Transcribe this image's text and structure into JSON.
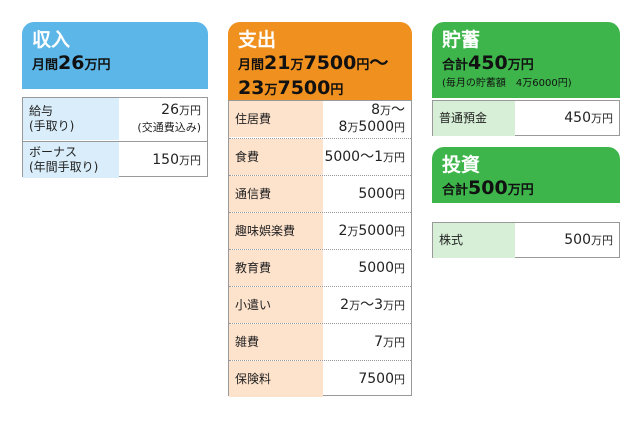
{
  "income": {
    "title": "収入",
    "summary": [
      "月間26万円"
    ],
    "rows": [
      {
        "label": [
          "給与",
          "(手取り)"
        ],
        "value": [
          "26万円",
          "(交通費込み)"
        ]
      },
      {
        "label": [
          "ボーナス",
          "(年間手取り)"
        ],
        "value": [
          "150万円"
        ]
      }
    ]
  },
  "expenses": {
    "title": "支出",
    "summary": [
      "月間21万7500円～",
      "23万7500円"
    ],
    "rows": [
      {
        "label": [
          "住居費"
        ],
        "value": [
          "8万～",
          "8万5000円"
        ]
      },
      {
        "label": [
          "食費"
        ],
        "value": [
          "5000～1万円"
        ]
      },
      {
        "label": [
          "通信費"
        ],
        "value": [
          "5000円"
        ]
      },
      {
        "label": [
          "趣味娯楽費"
        ],
        "value": [
          "2万5000円"
        ]
      },
      {
        "label": [
          "教育費"
        ],
        "value": [
          "5000円"
        ]
      },
      {
        "label": [
          "小遣い"
        ],
        "value": [
          "2万～3万円"
        ]
      },
      {
        "label": [
          "雑費"
        ],
        "value": [
          "7万円"
        ]
      },
      {
        "label": [
          "保険料"
        ],
        "value": [
          "7500円"
        ]
      }
    ]
  },
  "savings": {
    "title": "貯蓄",
    "summary": [
      "合計450万円",
      "(毎月の貯蓄額　4万6000円)"
    ],
    "rows": [
      {
        "label": [
          "普通預金"
        ],
        "value": [
          "450万円"
        ]
      }
    ]
  },
  "investment": {
    "title": "投資",
    "summary": [
      "合計500万円"
    ],
    "rows": [
      {
        "label": [
          "株式"
        ],
        "value": [
          "500万円"
        ]
      }
    ]
  }
}
